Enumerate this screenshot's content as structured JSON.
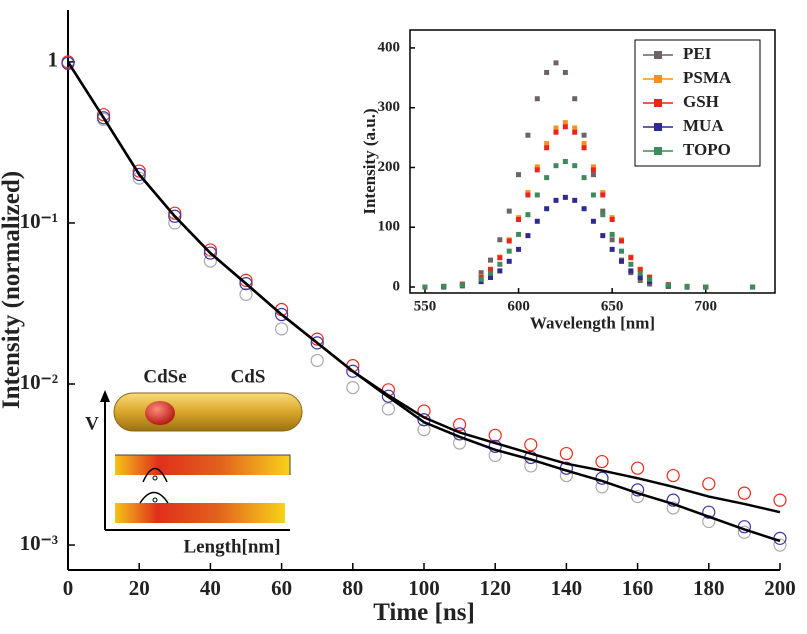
{
  "chart_data": [
    {
      "type": "scatter",
      "xlabel": "Time [ns]",
      "ylabel": "Intensity (normalized)",
      "xlim": [
        0,
        200
      ],
      "xticks": [
        0,
        20,
        40,
        60,
        80,
        100,
        120,
        140,
        160,
        180,
        200
      ],
      "ylim": [
        0.0007,
        2.1
      ],
      "ylog": true,
      "yticks": [
        1,
        {
          "value": 0.1,
          "label": "10⁻¹"
        },
        {
          "value": 0.01,
          "label": "10⁻²"
        },
        {
          "value": 0.001,
          "label": "10⁻³"
        }
      ],
      "x": [
        0,
        10,
        20,
        30,
        40,
        50,
        60,
        70,
        80,
        90,
        100,
        110,
        120,
        130,
        140,
        150,
        160,
        170,
        180,
        190,
        200
      ],
      "series": [
        {
          "color": "#ec2a1c",
          "marker": "open-circle",
          "values": [
            1,
            0.47,
            0.21,
            0.115,
            0.068,
            0.044,
            0.029,
            0.019,
            0.013,
            0.0092,
            0.0068,
            0.0056,
            0.0048,
            0.0042,
            0.0037,
            0.0033,
            0.003,
            0.0027,
            0.0024,
            0.0021,
            0.0019
          ]
        },
        {
          "color": "#a9aaa9",
          "marker": "open-circle",
          "values": [
            0.98,
            0.44,
            0.19,
            0.1,
            0.058,
            0.036,
            0.022,
            0.014,
            0.0095,
            0.007,
            0.0052,
            0.0043,
            0.0036,
            0.0031,
            0.0027,
            0.0023,
            0.002,
            0.0017,
            0.0014,
            0.0012,
            0.001
          ]
        },
        {
          "color": "#3b35a6",
          "marker": "open-circle",
          "values": [
            0.98,
            0.45,
            0.2,
            0.11,
            0.065,
            0.042,
            0.027,
            0.018,
            0.012,
            0.0084,
            0.006,
            0.0049,
            0.0041,
            0.0035,
            0.003,
            0.0026,
            0.0022,
            0.0019,
            0.0016,
            0.0013,
            0.0011
          ]
        },
        {
          "color": "#000000",
          "marker": "line",
          "values": [
            1,
            0.45,
            0.2,
            0.11,
            0.065,
            0.042,
            0.027,
            0.018,
            0.012,
            0.0085,
            0.0062,
            0.005,
            0.0043,
            0.0037,
            0.0032,
            0.0029,
            0.0026,
            0.0023,
            0.002,
            0.0018,
            0.0016
          ]
        },
        {
          "color": "#000000",
          "marker": "line",
          "values": [
            1,
            0.45,
            0.2,
            0.11,
            0.065,
            0.042,
            0.027,
            0.018,
            0.012,
            0.0083,
            0.0058,
            0.0047,
            0.0039,
            0.0034,
            0.0029,
            0.0025,
            0.0021,
            0.0018,
            0.0015,
            0.00125,
            0.00106
          ]
        }
      ]
    },
    {
      "type": "scatter",
      "xlabel": "Wavelength [nm]",
      "ylabel": "Intensity (a.u.)",
      "xlim": [
        542,
        737
      ],
      "xticks": [
        550,
        600,
        650,
        700
      ],
      "ylim": [
        -10,
        430
      ],
      "yticks": [
        0,
        100,
        200,
        300,
        400
      ],
      "legend": "top-right",
      "x": [
        550,
        560,
        570,
        580,
        585,
        590,
        595,
        600,
        605,
        610,
        615,
        620,
        625,
        630,
        635,
        640,
        645,
        650,
        655,
        660,
        665,
        670,
        680,
        690,
        700,
        725
      ],
      "series": [
        {
          "name": "PEI",
          "color": "#6d6362",
          "marker": "square",
          "values": [
            0,
            1,
            5,
            24,
            45,
            79,
            127,
            188,
            254,
            315,
            359,
            375,
            359,
            315,
            254,
            188,
            127,
            79,
            45,
            24,
            11,
            5,
            1,
            0,
            0,
            0
          ]
        },
        {
          "name": "PSMA",
          "color": "#f7901e",
          "marker": "square",
          "values": [
            0,
            1,
            4,
            17,
            30,
            50,
            79,
            116,
            158,
            201,
            240,
            266,
            275,
            266,
            240,
            201,
            158,
            116,
            79,
            50,
            30,
            17,
            4,
            1,
            0,
            0
          ]
        },
        {
          "name": "GSH",
          "color": "#e8251f",
          "marker": "square",
          "values": [
            0,
            1,
            4,
            16,
            29,
            49,
            77,
            113,
            154,
            196,
            233,
            259,
            268,
            259,
            233,
            196,
            154,
            113,
            77,
            49,
            29,
            16,
            4,
            1,
            0,
            0
          ]
        },
        {
          "name": "MUA",
          "color": "#2e2a8f",
          "marker": "square",
          "values": [
            0,
            0,
            2,
            9,
            16,
            27,
            43,
            63,
            86,
            110,
            131,
            145,
            150,
            145,
            131,
            110,
            86,
            63,
            43,
            27,
            16,
            9,
            2,
            0,
            0,
            0
          ]
        },
        {
          "name": "TOPO",
          "color": "#3f8a5a",
          "marker": "square",
          "values": [
            0,
            1,
            3,
            13,
            23,
            38,
            60,
            88,
            121,
            154,
            183,
            203,
            210,
            203,
            183,
            154,
            121,
            88,
            60,
            38,
            23,
            13,
            3,
            1,
            0,
            0
          ]
        }
      ]
    }
  ],
  "diagram": {
    "core": "CdSe",
    "shell": "CdS",
    "y_axis": "V",
    "x_axis": "Length[nm]"
  }
}
